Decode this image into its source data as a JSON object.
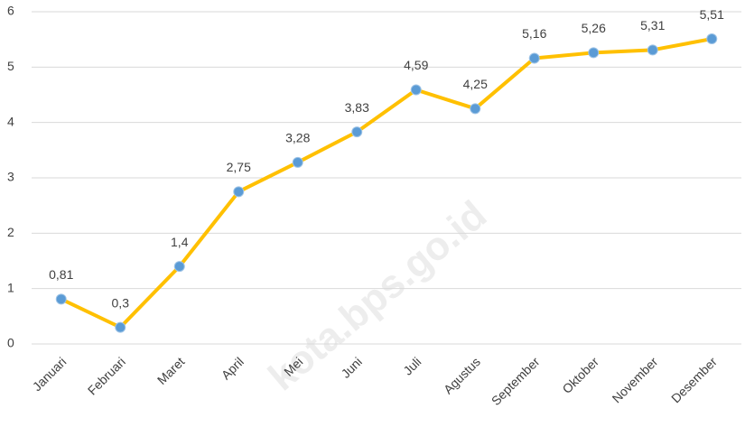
{
  "chart_data": {
    "type": "line",
    "categories": [
      "Januari",
      "Februari",
      "Maret",
      "April",
      "Mei",
      "Juni",
      "Juli",
      "Agustus",
      "September",
      "Oktober",
      "November",
      "Desember"
    ],
    "series": [
      {
        "color": "#ffc000",
        "marker_color": "#5b9bd5",
        "values": [
          0.81,
          0.3,
          1.4,
          2.75,
          3.28,
          3.83,
          4.59,
          4.25,
          5.16,
          5.26,
          5.31,
          5.51
        ],
        "value_labels": [
          "0,81",
          "0,3",
          "1,4",
          "2,75",
          "3,28",
          "3,83",
          "4,59",
          "4,25",
          "5,16",
          "5,26",
          "5,31",
          "5,51"
        ]
      }
    ],
    "ylim": [
      0,
      6
    ],
    "yticks": [
      0,
      1,
      2,
      3,
      4,
      5,
      6
    ],
    "grid": true,
    "watermark": "kota.bps.go.id"
  }
}
